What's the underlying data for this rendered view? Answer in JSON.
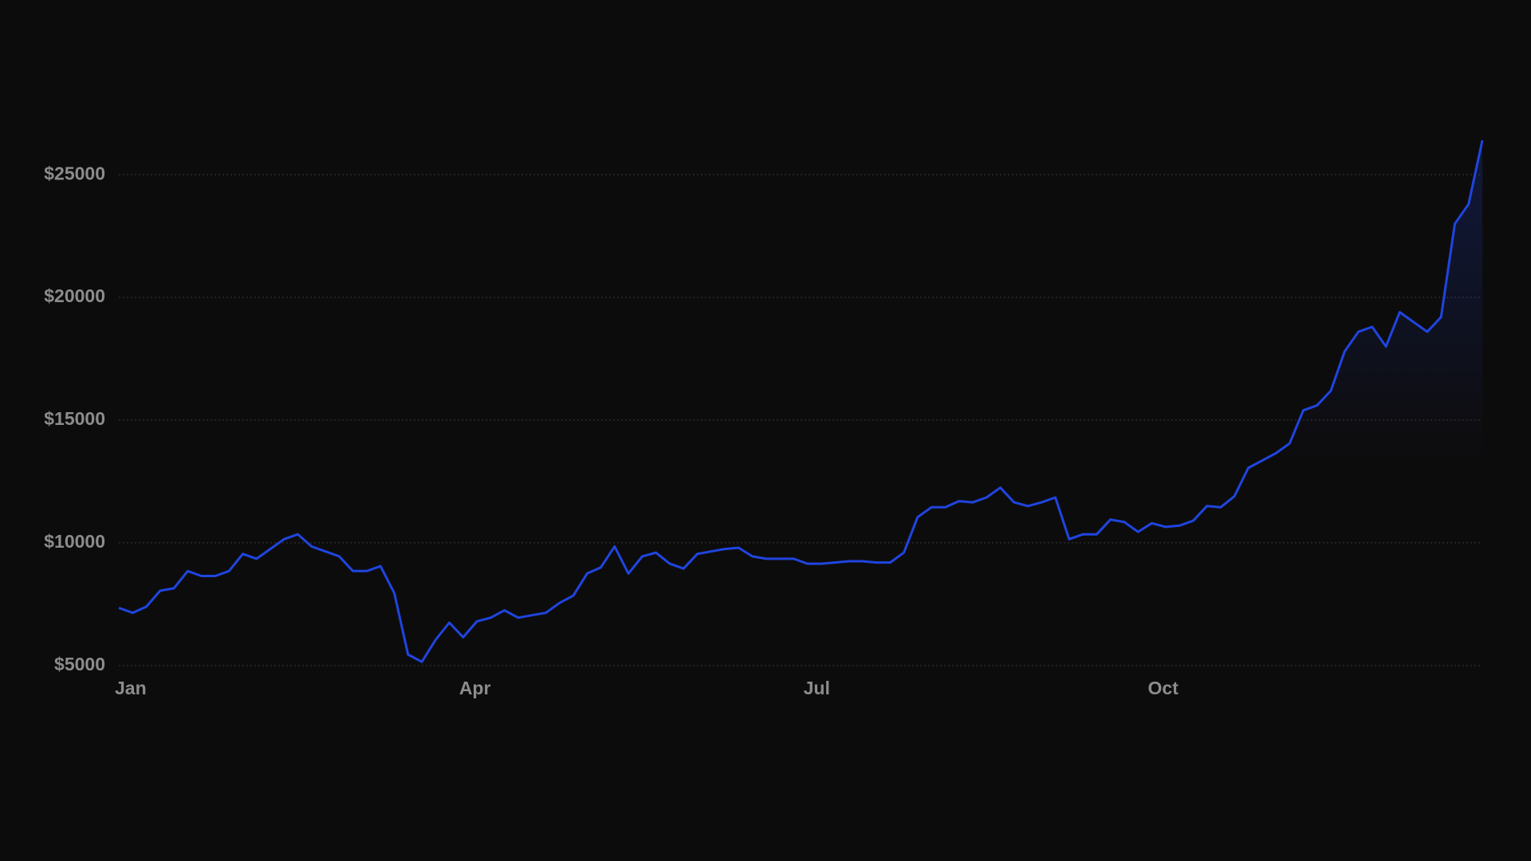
{
  "chart_data": {
    "type": "line",
    "categories": [
      "Jan",
      null,
      null,
      null,
      null,
      null,
      null,
      null,
      null,
      null,
      null,
      null,
      null,
      null,
      null,
      null,
      null,
      null,
      null,
      null,
      null,
      null,
      null,
      null,
      null,
      "Apr",
      null,
      null,
      null,
      null,
      null,
      null,
      null,
      null,
      null,
      null,
      null,
      null,
      null,
      null,
      null,
      null,
      null,
      null,
      null,
      null,
      null,
      null,
      null,
      null,
      "Jul",
      null,
      null,
      null,
      null,
      null,
      null,
      null,
      null,
      null,
      null,
      null,
      null,
      null,
      null,
      null,
      null,
      null,
      null,
      null,
      null,
      null,
      null,
      null,
      null,
      "Oct",
      null,
      null,
      null,
      null,
      null,
      null,
      null,
      null,
      null,
      null,
      null,
      null,
      null,
      null,
      null,
      null,
      null,
      null,
      null,
      null,
      null,
      null,
      null,
      null
    ],
    "values": [
      7350,
      7150,
      7400,
      8050,
      8150,
      8850,
      8650,
      8650,
      8850,
      9550,
      9350,
      9750,
      10150,
      10350,
      9850,
      9650,
      9450,
      8850,
      8850,
      9050,
      7950,
      5450,
      5150,
      6050,
      6750,
      6150,
      6800,
      6950,
      7250,
      6950,
      7050,
      7150,
      7550,
      7850,
      8750,
      9000,
      9850,
      8750,
      9450,
      9600,
      9150,
      8950,
      9550,
      9650,
      9750,
      9800,
      9450,
      9350,
      9350,
      9350,
      9150,
      9150,
      9200,
      9250,
      9250,
      9200,
      9200,
      9600,
      11050,
      11450,
      11450,
      11700,
      11650,
      11850,
      12250,
      11650,
      11500,
      11650,
      11850,
      10150,
      10350,
      10350,
      10950,
      10850,
      10450,
      10800,
      10650,
      10700,
      10900,
      11500,
      11450,
      11900,
      13050,
      13350,
      13650,
      14050,
      15400,
      15600,
      16200,
      17800,
      18600,
      18800,
      18000,
      19400,
      19000,
      18600,
      19200,
      23000,
      23800,
      26400
    ],
    "color": "#1f45e0",
    "ylim": [
      4800,
      26500
    ],
    "yticks": [
      {
        "value": 5000,
        "label": "$5000"
      },
      {
        "value": 10000,
        "label": "$10000"
      },
      {
        "value": 15000,
        "label": "$15000"
      },
      {
        "value": 20000,
        "label": "$20000"
      },
      {
        "value": 25000,
        "label": "$25000"
      }
    ],
    "grid": true
  }
}
